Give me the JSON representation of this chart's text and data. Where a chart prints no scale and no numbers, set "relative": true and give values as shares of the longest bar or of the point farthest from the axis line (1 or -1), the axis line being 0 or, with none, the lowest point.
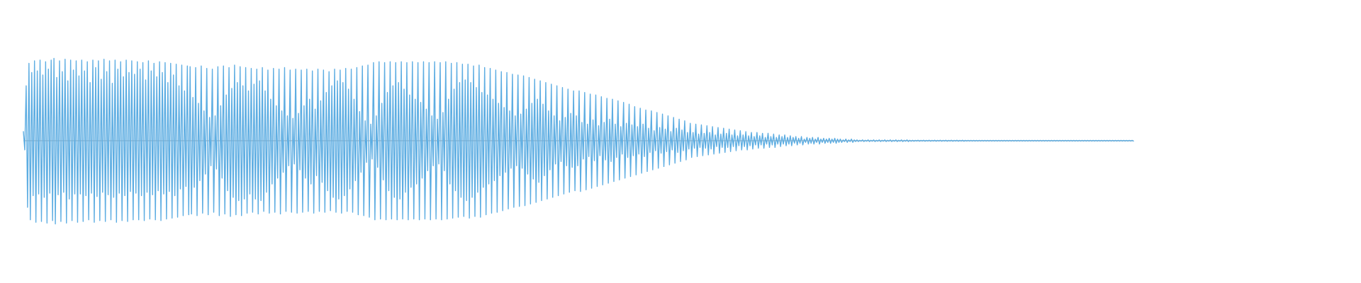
{
  "chart_data": {
    "type": "line",
    "relative": true,
    "color": "#5dade2",
    "categories": [
      null,
      null,
      null,
      null,
      null,
      null,
      null,
      null,
      null,
      null,
      null,
      null,
      null,
      null,
      null,
      null,
      null,
      null,
      null,
      null,
      null,
      null,
      null,
      null,
      null,
      null,
      null,
      null,
      null,
      null,
      null,
      null,
      null,
      null,
      null,
      null,
      null,
      null,
      null,
      null,
      null,
      null,
      null,
      null,
      null,
      null,
      null,
      null,
      null,
      null,
      null,
      null,
      null,
      null,
      null,
      null,
      null,
      null,
      null,
      null,
      null,
      null,
      null,
      null,
      null,
      null,
      null,
      null,
      null,
      null,
      null,
      null,
      null,
      null,
      null,
      null,
      null,
      null,
      null,
      null,
      null,
      null,
      null,
      null,
      null,
      null,
      null,
      null,
      null,
      null,
      null,
      null,
      null,
      null,
      null,
      null,
      null,
      null,
      null,
      null,
      null,
      null,
      null,
      null,
      null,
      null,
      null,
      null,
      null,
      null,
      null,
      null,
      null,
      null,
      null,
      null,
      null,
      null,
      null,
      null,
      null,
      null,
      null,
      null,
      null,
      null,
      null,
      null,
      null,
      null,
      null,
      null,
      null,
      null,
      null,
      null,
      null,
      null,
      null,
      null,
      null,
      null,
      null,
      null,
      null,
      null,
      null,
      null,
      null,
      null,
      null,
      null,
      null,
      null,
      null,
      null,
      null,
      null,
      null,
      null,
      null,
      null,
      null,
      null,
      null,
      null,
      null,
      null,
      null,
      null,
      null,
      null,
      null,
      null,
      null,
      null,
      null,
      null,
      null,
      null,
      null,
      null,
      null,
      null,
      null,
      null,
      null,
      null,
      null,
      null,
      null,
      null,
      null,
      null,
      null,
      null,
      null,
      null,
      null,
      null,
      null,
      null,
      null,
      null,
      null,
      null,
      null,
      null,
      null,
      null,
      null,
      null,
      null,
      null,
      null,
      null,
      null,
      null,
      null,
      null,
      null,
      null,
      null,
      null,
      null,
      null,
      null,
      null,
      null,
      null,
      null,
      null,
      null,
      null,
      null,
      null,
      null,
      null,
      null,
      null,
      null,
      null,
      null,
      null,
      null,
      null,
      null,
      null,
      null,
      null,
      null,
      null,
      null,
      null,
      null,
      null,
      null,
      null,
      null,
      null,
      null,
      null,
      null,
      null,
      null,
      null,
      null,
      null,
      null,
      null,
      null,
      null,
      null,
      null,
      null,
      null,
      null,
      null,
      null,
      null,
      null,
      null,
      null,
      null,
      null,
      null,
      null,
      null,
      null,
      null,
      null,
      null,
      null,
      null,
      null,
      null,
      null,
      null,
      null,
      null,
      null,
      null,
      null,
      null,
      null,
      null,
      null,
      null,
      null,
      null,
      null,
      null,
      null,
      null,
      null,
      null,
      null,
      null,
      null,
      null,
      null,
      null,
      null,
      null,
      null,
      null,
      null,
      null,
      null,
      null,
      null,
      null,
      null,
      null,
      null,
      null,
      null,
      null,
      null,
      null,
      null,
      null,
      null,
      null,
      null,
      null,
      null,
      null,
      null,
      null,
      null,
      null,
      null,
      null,
      null,
      null,
      null,
      null,
      null,
      null,
      null,
      null,
      null,
      null,
      null,
      null,
      null,
      null,
      null,
      null,
      null,
      null,
      null,
      null,
      null,
      null,
      null,
      null,
      null,
      null,
      null,
      null,
      null,
      null,
      null,
      null,
      null,
      null,
      null,
      null,
      null,
      null,
      null,
      null,
      null,
      null,
      null,
      null,
      null,
      null,
      null,
      null,
      null,
      null,
      null,
      null,
      null,
      null,
      null,
      null,
      null,
      null,
      null,
      null,
      null,
      null,
      null,
      null,
      null,
      null,
      null,
      null,
      null,
      null,
      null,
      null,
      null,
      null,
      null,
      null,
      null,
      null,
      null,
      null,
      null,
      null,
      null,
      null,
      null,
      null,
      null,
      null,
      null,
      null,
      null,
      null,
      null,
      null,
      null,
      null,
      null,
      null,
      null,
      null,
      null,
      null,
      null,
      null,
      null,
      null,
      null,
      null,
      null,
      null,
      null,
      null,
      null,
      null,
      null,
      null,
      null,
      null,
      null,
      null,
      null,
      null,
      null,
      null,
      null,
      null,
      null,
      null,
      null,
      null,
      null,
      null,
      null,
      null,
      null,
      null,
      null,
      null,
      null,
      null,
      null,
      null,
      null,
      null,
      null,
      null,
      null,
      null,
      null,
      null,
      null,
      null,
      null,
      null,
      null,
      null,
      null,
      null,
      null,
      null,
      null,
      null,
      null,
      null,
      null,
      null,
      null,
      null,
      null,
      null,
      null,
      null,
      null,
      null,
      null,
      null,
      null,
      null,
      null,
      null,
      null,
      null,
      null,
      null,
      null,
      null,
      null,
      null,
      null,
      null,
      null,
      null,
      null,
      null,
      null,
      null,
      null,
      null,
      null,
      null,
      null,
      null,
      null,
      null,
      null,
      null,
      null,
      null,
      null,
      null,
      null,
      null,
      null,
      null,
      null,
      null,
      null,
      null,
      null,
      null,
      null,
      null,
      null,
      null,
      null,
      null,
      null,
      null,
      null,
      null,
      null,
      null,
      null,
      null,
      null,
      null,
      null,
      null,
      null,
      null,
      null,
      null,
      null,
      null,
      null,
      null,
      null,
      null,
      null,
      null,
      null,
      null,
      null,
      null,
      null,
      null,
      null,
      null,
      null,
      null,
      null,
      null,
      null,
      null,
      null,
      null,
      null,
      null,
      null,
      null,
      null,
      null,
      null,
      null,
      null,
      null,
      null,
      null,
      null,
      null,
      null,
      null,
      null,
      null,
      null,
      null,
      null,
      null,
      null,
      null,
      null,
      null,
      null,
      null,
      null,
      null,
      null,
      null,
      null,
      null,
      null,
      null,
      null,
      null,
      null,
      null,
      null,
      null,
      null,
      null,
      null,
      null,
      null,
      null,
      null,
      null,
      null,
      null,
      null,
      null,
      null,
      null,
      null,
      null,
      null,
      null,
      null,
      null,
      null,
      null,
      null,
      null,
      null,
      null,
      null,
      null,
      null,
      null,
      null,
      null,
      null,
      null,
      null,
      null,
      null,
      null,
      null,
      null,
      null,
      null,
      null,
      null,
      null,
      null,
      null,
      null,
      null,
      null,
      null,
      null,
      null,
      null,
      null,
      null,
      null,
      null,
      null,
      null,
      null,
      null,
      null,
      null,
      null,
      null,
      null,
      null,
      null,
      null,
      null,
      null,
      null,
      null,
      null,
      null,
      null,
      null,
      null,
      null,
      null,
      null,
      null,
      null,
      null,
      null,
      null,
      null,
      null,
      null,
      null,
      null,
      null,
      null,
      null,
      null,
      null,
      null,
      null,
      null,
      null,
      null,
      null,
      null,
      null,
      null,
      null,
      null,
      null,
      null,
      null,
      null,
      null,
      null,
      null,
      null,
      null,
      null,
      null,
      null,
      null,
      null,
      null,
      null,
      null,
      null,
      null,
      null,
      null,
      null,
      null,
      null,
      null,
      null,
      null,
      null,
      null,
      null
    ],
    "values": [
      0.11,
      -0.11,
      0.66,
      -0.8,
      0.93,
      -0.95,
      0.82,
      -0.66,
      0.96,
      -0.98,
      0.84,
      -0.64,
      0.97,
      -0.97,
      0.79,
      -0.68,
      0.95,
      -0.99,
      0.86,
      -0.63,
      0.97,
      -0.96,
      0.99,
      -1,
      0.76,
      -0.65,
      0.96,
      -0.97,
      0.83,
      -0.62,
      0.98,
      -0.99,
      0.72,
      -0.7,
      0.97,
      -0.96,
      0.85,
      -0.64,
      0.96,
      -0.98,
      0.78,
      -0.64,
      0.97,
      -0.97,
      0.84,
      -0.66,
      0.95,
      -0.95,
      0.7,
      -0.63,
      0.97,
      -0.98,
      0.88,
      -0.67,
      0.96,
      -0.96,
      0.74,
      -0.62,
      0.98,
      -0.97,
      0.83,
      -0.65,
      0.96,
      -0.95,
      0.69,
      -0.68,
      0.97,
      -0.98,
      0.86,
      -0.63,
      0.95,
      -0.96,
      0.77,
      -0.66,
      0.97,
      -0.97,
      0.82,
      -0.61,
      0.96,
      -0.95,
      0.8,
      -0.63,
      0.95,
      -0.95,
      0.86,
      -0.66,
      0.94,
      -0.96,
      0.73,
      -0.62,
      0.96,
      -0.94,
      0.84,
      -0.65,
      0.93,
      -0.95,
      0.77,
      -0.6,
      0.95,
      -0.96,
      0.82,
      -0.64,
      0.94,
      -0.94,
      0.7,
      -0.61,
      0.93,
      -0.93,
      0.79,
      -0.66,
      0.92,
      -0.92,
      0.66,
      -0.58,
      0.91,
      -0.9,
      0.6,
      -0.55,
      0.9,
      -0.89,
      0.89,
      -0.88,
      0.52,
      -0.56,
      0.88,
      -0.9,
      0.45,
      -0.48,
      0.9,
      -0.87,
      0.36,
      -0.4,
      0.87,
      -0.89,
      0.28,
      -0.3,
      0.86,
      -0.86,
      0.3,
      -0.34,
      0.89,
      -0.9,
      0.42,
      -0.45,
      0.9,
      -0.88,
      0.55,
      -0.6,
      0.88,
      -0.91,
      0.63,
      -0.68,
      0.91,
      -0.89,
      0.7,
      -0.72,
      0.89,
      -0.9,
      0.66,
      -0.7,
      0.88,
      -0.87,
      0.6,
      -0.64,
      0.87,
      -0.86,
      0.68,
      -0.7,
      0.86,
      -0.88,
      0.72,
      -0.72,
      0.88,
      -0.85,
      0.6,
      -0.62,
      0.85,
      -0.87,
      0.5,
      -0.52,
      0.87,
      -0.86,
      0.42,
      -0.45,
      0.86,
      -0.88,
      0.36,
      -0.38,
      0.88,
      -0.85,
      0.3,
      -0.3,
      0.85,
      -0.86,
      0.27,
      -0.28,
      0.86,
      -0.87,
      0.33,
      -0.35,
      0.85,
      -0.86,
      0.42,
      -0.45,
      0.86,
      -0.85,
      0.5,
      -0.52,
      0.84,
      -0.87,
      0.38,
      -0.42,
      0.86,
      -0.85,
      0.48,
      -0.5,
      0.85,
      -0.86,
      0.58,
      -0.6,
      0.83,
      -0.84,
      0.66,
      -0.68,
      0.86,
      -0.86,
      0.72,
      -0.7,
      0.85,
      -0.87,
      0.7,
      -0.66,
      0.87,
      -0.85,
      0.62,
      -0.58,
      0.86,
      -0.86,
      0.5,
      -0.48,
      0.88,
      -0.89,
      0.35,
      -0.38,
      0.9,
      -0.9,
      0.24,
      -0.26,
      0.91,
      -0.92,
      0.2,
      -0.22,
      0.94,
      -0.95,
      0.3,
      -0.32,
      0.95,
      -0.94,
      0.45,
      -0.47,
      0.94,
      -0.95,
      0.58,
      -0.6,
      0.95,
      -0.94,
      0.66,
      -0.68,
      0.94,
      -0.95,
      0.7,
      -0.7,
      0.95,
      -0.94,
      0.62,
      -0.62,
      0.94,
      -0.95,
      0.55,
      -0.56,
      0.95,
      -0.94,
      0.5,
      -0.52,
      0.94,
      -0.95,
      0.46,
      -0.45,
      0.95,
      -0.94,
      0.38,
      -0.36,
      0.94,
      -0.95,
      0.3,
      -0.3,
      0.95,
      -0.94,
      0.26,
      -0.28,
      0.94,
      -0.95,
      0.34,
      -0.36,
      0.95,
      -0.94,
      0.5,
      -0.52,
      0.93,
      -0.93,
      0.62,
      -0.6,
      0.94,
      -0.92,
      0.7,
      -0.68,
      0.92,
      -0.91,
      0.73,
      -0.72,
      0.92,
      -0.93,
      0.7,
      -0.68,
      0.9,
      -0.91,
      0.64,
      -0.62,
      0.91,
      -0.92,
      0.58,
      -0.56,
      0.88,
      -0.89,
      0.55,
      -0.52,
      0.87,
      -0.87,
      0.5,
      -0.48,
      0.85,
      -0.86,
      0.45,
      -0.42,
      0.83,
      -0.84,
      0.4,
      -0.38,
      0.82,
      -0.82,
      0.36,
      -0.33,
      0.8,
      -0.8,
      0.3,
      -0.3,
      0.79,
      -0.79,
      0.32,
      -0.33,
      0.78,
      -0.78,
      0.38,
      -0.4,
      0.76,
      -0.76,
      0.45,
      -0.46,
      0.74,
      -0.74,
      0.5,
      -0.5,
      0.72,
      -0.72,
      0.44,
      -0.42,
      0.7,
      -0.7,
      0.36,
      -0.35,
      0.68,
      -0.68,
      0.3,
      -0.28,
      0.66,
      -0.66,
      0.24,
      -0.25,
      0.64,
      -0.64,
      0.28,
      -0.3,
      0.62,
      -0.62,
      0.33,
      -0.32,
      0.6,
      -0.6,
      0.3,
      -0.3,
      0.6,
      -0.61,
      0.22,
      -0.22,
      0.58,
      -0.59,
      0.2,
      -0.19,
      0.56,
      -0.57,
      0.25,
      -0.24,
      0.55,
      -0.55,
      0.18,
      -0.18,
      0.53,
      -0.53,
      0.22,
      -0.23,
      0.51,
      -0.51,
      0.26,
      -0.25,
      0.5,
      -0.49,
      0.2,
      -0.2,
      0.48,
      -0.47,
      0.17,
      -0.16,
      0.46,
      -0.45,
      0.21,
      -0.2,
      0.44,
      -0.43,
      0.19,
      -0.18,
      0.41,
      -0.41,
      0.17,
      -0.16,
      0.39,
      -0.39,
      0.2,
      -0.19,
      0.37,
      -0.37,
      0.15,
      -0.14,
      0.36,
      -0.35,
      0.12,
      -0.12,
      0.34,
      -0.33,
      0.16,
      -0.15,
      0.32,
      -0.31,
      0.14,
      -0.13,
      0.3,
      -0.29,
      0.11,
      -0.11,
      0.28,
      -0.27,
      0.15,
      -0.14,
      0.26,
      -0.25,
      0.13,
      -0.12,
      0.24,
      -0.23,
      0.1,
      -0.1,
      0.21,
      -0.2,
      0.1,
      -0.09,
      0.2,
      -0.19,
      0.08,
      -0.08,
      0.19,
      -0.18,
      0.09,
      -0.09,
      0.18,
      -0.17,
      0.1,
      -0.1,
      0.17,
      -0.16,
      0.07,
      -0.07,
      0.16,
      -0.15,
      0.08,
      -0.08,
      0.15,
      -0.14,
      0.09,
      -0.08,
      0.14,
      -0.13,
      0.07,
      -0.07,
      0.13,
      -0.12,
      0.06,
      -0.06,
      0.12,
      -0.11,
      0.07,
      -0.07,
      0.11,
      -0.11,
      0.06,
      -0.06,
      0.1,
      -0.1,
      0.05,
      -0.05,
      0.1,
      -0.09,
      0.06,
      -0.05,
      0.09,
      -0.09,
      0.04,
      -0.04,
      0.09,
      -0.08,
      0.05,
      -0.05,
      0.08,
      -0.08,
      0.04,
      -0.04,
      0.07,
      -0.07,
      0.05,
      -0.04,
      0.07,
      -0.06,
      0.04,
      -0.04,
      0.06,
      -0.06,
      0.04,
      -0.03,
      0.05,
      -0.05,
      0.03,
      -0.03,
      0.05,
      -0.05,
      0.02,
      -0.02,
      0.04,
      -0.04,
      0.03,
      -0.03,
      0.04,
      -0.04,
      0.02,
      -0.02,
      0.04,
      -0.04,
      0.02,
      -0.02,
      0.03,
      -0.03,
      0.02,
      -0.02,
      0.03,
      -0.03,
      0.02,
      -0.02,
      0.03,
      -0.03,
      0.02,
      -0.02,
      0.02,
      -0.02,
      0.01,
      -0.01,
      0.02,
      -0.02,
      0.01,
      -0.01,
      0.02,
      -0.02,
      0.01,
      -0.01,
      0.01,
      -0.01,
      0.006,
      -0.006,
      0.01,
      -0.01,
      0.006,
      -0.006,
      0.01,
      -0.01,
      0.006,
      -0.006,
      0.01,
      -0.01,
      0.006,
      -0.006,
      0.01,
      -0.01,
      0.006,
      -0.006,
      0.01,
      -0.01,
      0.006,
      -0.006,
      0.01,
      -0.01,
      0.006,
      -0.006,
      0.01,
      -0.01,
      0.006,
      -0.006,
      0.01,
      -0.01,
      0.006,
      -0.006,
      0.01,
      -0.01,
      0.006,
      -0.006,
      0.006,
      -0.006,
      0.004,
      -0.004,
      0.006,
      -0.006,
      0.004,
      -0.004,
      0.006,
      -0.006,
      0.004,
      -0.004,
      0.006,
      -0.006,
      0.004,
      -0.004,
      0.006,
      -0.006,
      0.004,
      -0.004,
      0.006,
      -0.006,
      0.004,
      -0.004,
      0.006,
      -0.006,
      0.004,
      -0.004,
      0.006,
      -0.006,
      0.004,
      -0.004,
      0.006,
      -0.006,
      0.004,
      -0.004,
      0.006,
      -0.006,
      0.004,
      -0.004,
      0.004,
      -0.004,
      0.004,
      -0.004,
      0.004,
      -0.004,
      0.004,
      -0.004,
      0.004,
      -0.004,
      0.004,
      -0.004,
      0.004,
      -0.004,
      0.004,
      -0.004,
      0.004,
      -0.004,
      0.004,
      -0.004,
      0.004,
      -0.004,
      0.004,
      -0.004,
      0.004,
      -0.004,
      0.004,
      -0.004,
      0.004,
      -0.004,
      0.004,
      -0.004,
      0.004,
      -0.004,
      0.004,
      -0.004,
      0.004,
      -0.004,
      0.004,
      -0.004,
      0.004,
      -0.004,
      0.004,
      -0.004,
      0.004,
      -0.004,
      0.004,
      -0.004,
      0.004,
      -0.004,
      0.004,
      -0.004,
      0.004,
      -0.004,
      0.004,
      -0.004,
      0.004,
      -0.004,
      0.004,
      -0.004,
      0.004,
      -0.004,
      0.004,
      -0.004,
      0.004,
      -0.004,
      0.004,
      -0.004,
      0.004,
      -0.004,
      0.004,
      -0.004,
      0.004,
      -0.004,
      0.004,
      -0.004,
      0.004,
      -0.004,
      0.004,
      -0.004,
      0.004,
      -0.004,
      0.004,
      -0.004,
      0.004,
      -0.004,
      0.004,
      -0.004,
      0.004,
      -0.004,
      0.004,
      -0.004,
      0.004,
      -0.004,
      0.004,
      -0.004,
      0.004,
      -0.004,
      0.004,
      -0.004,
      0.004,
      -0.004,
      0.004,
      -0.004,
      0.004,
      -0.004,
      0.004,
      -0.004,
      0.004,
      -0.004,
      0.004,
      -0.004,
      0.004,
      -0.004,
      0.004,
      -0.004,
      0.004,
      -0.004,
      0.004,
      -0.004
    ]
  }
}
